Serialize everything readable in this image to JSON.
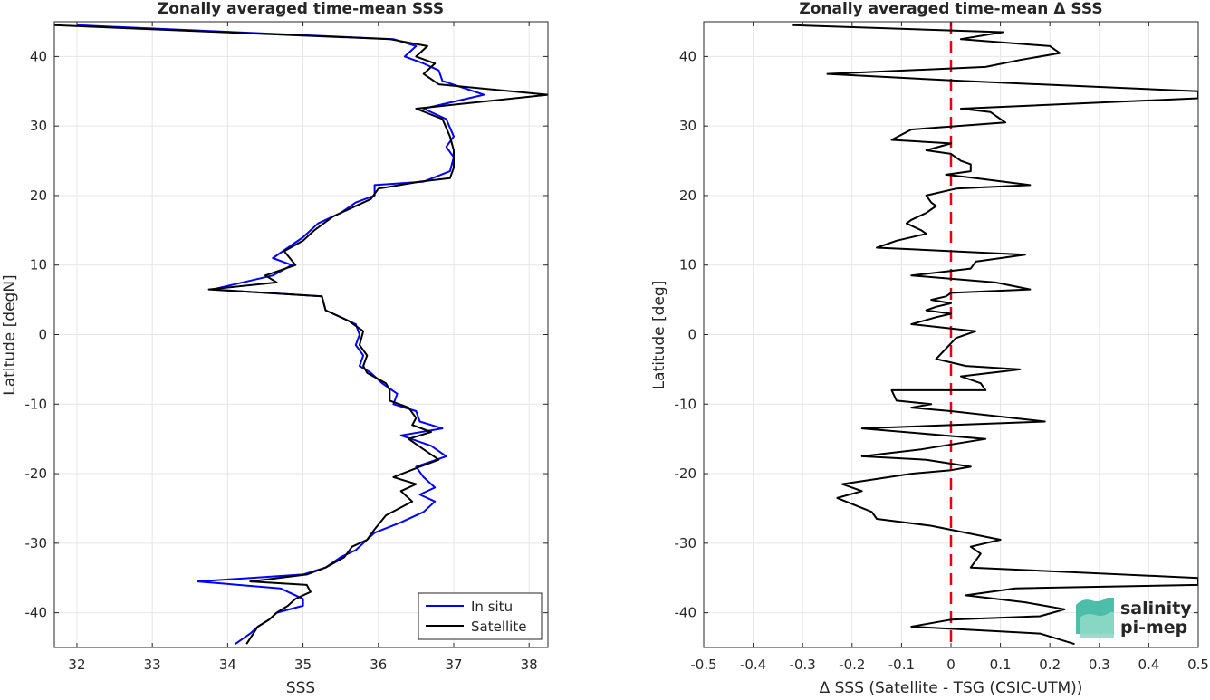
{
  "chart_data": [
    {
      "type": "line",
      "title": "Zonally averaged time-mean SSS",
      "xlabel": "SSS",
      "ylabel": "Latitude [degN]",
      "xlim": [
        31.7,
        38.25
      ],
      "ylim": [
        -45,
        45
      ],
      "xticks": [
        32,
        33,
        34,
        35,
        36,
        37,
        38
      ],
      "yticks": [
        -40,
        -30,
        -20,
        -10,
        0,
        10,
        20,
        30,
        40
      ],
      "grid": true,
      "legend": "bottom-right",
      "series": [
        {
          "name": "In situ",
          "color": "#0000ff",
          "points": [
            [
              32.0,
              44.5
            ],
            [
              36.2,
              42.5
            ],
            [
              36.5,
              41.5
            ],
            [
              36.35,
              40
            ],
            [
              36.6,
              39
            ],
            [
              36.8,
              38
            ],
            [
              36.85,
              36.5
            ],
            [
              37.4,
              34.5
            ],
            [
              36.6,
              32.5
            ],
            [
              36.9,
              31
            ],
            [
              37.0,
              28.5
            ],
            [
              36.9,
              27
            ],
            [
              37.0,
              25.5
            ],
            [
              36.95,
              23.5
            ],
            [
              36.6,
              22
            ],
            [
              35.95,
              21.5
            ],
            [
              35.95,
              20
            ],
            [
              35.7,
              19
            ],
            [
              35.5,
              17.5
            ],
            [
              35.2,
              16
            ],
            [
              35.0,
              14
            ],
            [
              34.8,
              12.5
            ],
            [
              34.6,
              11
            ],
            [
              34.85,
              10
            ],
            [
              34.6,
              8.5
            ],
            [
              33.8,
              6.5
            ],
            [
              35.25,
              5.5
            ],
            [
              35.3,
              3.5
            ],
            [
              35.7,
              1.5
            ],
            [
              35.75,
              0
            ],
            [
              35.7,
              -1.5
            ],
            [
              35.8,
              -3
            ],
            [
              35.75,
              -4.5
            ],
            [
              35.9,
              -5.5
            ],
            [
              36.05,
              -7
            ],
            [
              36.25,
              -8.5
            ],
            [
              36.2,
              -10
            ],
            [
              36.5,
              -11
            ],
            [
              36.55,
              -12.5
            ],
            [
              36.85,
              -13.5
            ],
            [
              36.3,
              -14.5
            ],
            [
              36.7,
              -16
            ],
            [
              36.9,
              -17.5
            ],
            [
              36.5,
              -19
            ],
            [
              36.6,
              -20.5
            ],
            [
              36.75,
              -22
            ],
            [
              36.55,
              -23
            ],
            [
              36.75,
              -24
            ],
            [
              36.6,
              -25.5
            ],
            [
              36.3,
              -27
            ],
            [
              35.95,
              -28.5
            ],
            [
              35.8,
              -30
            ],
            [
              35.7,
              -31
            ],
            [
              35.5,
              -32
            ],
            [
              35.3,
              -33.5
            ],
            [
              35.0,
              -34.5
            ],
            [
              33.6,
              -35.5
            ],
            [
              34.7,
              -36.5
            ],
            [
              35.0,
              -38
            ],
            [
              35.0,
              -39
            ],
            [
              34.65,
              -40
            ],
            [
              34.55,
              -41
            ],
            [
              34.4,
              -42
            ],
            [
              34.3,
              -43
            ],
            [
              34.1,
              -44.5
            ]
          ]
        },
        {
          "name": "Satellite",
          "color": "#000000",
          "points": [
            [
              31.7,
              44.5
            ],
            [
              36.15,
              42.5
            ],
            [
              36.65,
              41.5
            ],
            [
              36.5,
              40
            ],
            [
              36.75,
              39
            ],
            [
              36.6,
              37.5
            ],
            [
              36.8,
              36
            ],
            [
              38.25,
              34.5
            ],
            [
              36.5,
              32.5
            ],
            [
              36.85,
              31
            ],
            [
              36.95,
              28.5
            ],
            [
              37.0,
              26.5
            ],
            [
              37.0,
              24
            ],
            [
              36.95,
              22.5
            ],
            [
              36.55,
              22
            ],
            [
              36.0,
              21
            ],
            [
              35.9,
              19.5
            ],
            [
              35.6,
              18
            ],
            [
              35.4,
              17
            ],
            [
              35.15,
              15
            ],
            [
              35.0,
              13.5
            ],
            [
              34.75,
              12
            ],
            [
              34.9,
              10
            ],
            [
              34.5,
              8.5
            ],
            [
              34.65,
              7.5
            ],
            [
              33.75,
              6.5
            ],
            [
              35.25,
              5.5
            ],
            [
              35.3,
              3.5
            ],
            [
              35.6,
              2
            ],
            [
              35.8,
              0.5
            ],
            [
              35.75,
              -1.5
            ],
            [
              35.85,
              -3
            ],
            [
              35.8,
              -4.5
            ],
            [
              35.85,
              -5.5
            ],
            [
              36.1,
              -7
            ],
            [
              36.15,
              -8
            ],
            [
              36.15,
              -9.5
            ],
            [
              36.4,
              -10.5
            ],
            [
              36.5,
              -12
            ],
            [
              36.45,
              -13
            ],
            [
              36.7,
              -14
            ],
            [
              36.4,
              -15
            ],
            [
              36.6,
              -16.5
            ],
            [
              36.8,
              -18
            ],
            [
              36.55,
              -19
            ],
            [
              36.2,
              -20.5
            ],
            [
              36.5,
              -21.5
            ],
            [
              36.3,
              -22.5
            ],
            [
              36.45,
              -24
            ],
            [
              36.1,
              -26
            ],
            [
              35.95,
              -28
            ],
            [
              35.85,
              -29.5
            ],
            [
              35.65,
              -30.5
            ],
            [
              35.55,
              -32
            ],
            [
              35.3,
              -33.5
            ],
            [
              35.05,
              -34.5
            ],
            [
              34.3,
              -35.5
            ],
            [
              35.05,
              -36
            ],
            [
              35.1,
              -37
            ],
            [
              34.9,
              -38
            ],
            [
              34.8,
              -39
            ],
            [
              34.65,
              -40
            ],
            [
              34.55,
              -41
            ],
            [
              34.4,
              -42
            ],
            [
              34.25,
              -44.5
            ]
          ]
        }
      ]
    },
    {
      "type": "line",
      "title": "Zonally averaged time-mean Δ SSS",
      "xlabel": "Δ SSS (Satellite - TSG (CSIC-UTM))",
      "ylabel": "Latitude [deg]",
      "xlim": [
        -0.5,
        0.5
      ],
      "ylim": [
        -45,
        45
      ],
      "xticks": [
        -0.5,
        -0.4,
        -0.3,
        -0.2,
        -0.1,
        0,
        0.1,
        0.2,
        0.3,
        0.4,
        0.5
      ],
      "yticks": [
        -40,
        -30,
        -20,
        -10,
        0,
        10,
        20,
        30,
        40
      ],
      "grid": true,
      "reference_line": {
        "x": 0,
        "color": "#e8000b",
        "style": "dashed"
      },
      "series": [
        {
          "color": "#000000",
          "points": [
            [
              -0.32,
              44.5
            ],
            [
              0.105,
              43.5
            ],
            [
              0.02,
              42.5
            ],
            [
              0.2,
              41.5
            ],
            [
              0.22,
              40.5
            ],
            [
              0.14,
              39.5
            ],
            [
              0.07,
              38.5
            ],
            [
              -0.25,
              37.5
            ],
            [
              0.02,
              36.5
            ],
            [
              0.5,
              35
            ],
            [
              0.5,
              34
            ],
            [
              0.02,
              32.5
            ],
            [
              0.08,
              32
            ],
            [
              0.11,
              30.5
            ],
            [
              -0.08,
              29.5
            ],
            [
              -0.12,
              28
            ],
            [
              0.0,
              27.5
            ],
            [
              -0.05,
              26.5
            ],
            [
              0.0,
              26
            ],
            [
              0.02,
              25
            ],
            [
              0.04,
              24.5
            ],
            [
              0.04,
              23.5
            ],
            [
              -0.01,
              23
            ],
            [
              0.05,
              22.5
            ],
            [
              0.16,
              21.5
            ],
            [
              0.01,
              21
            ],
            [
              -0.05,
              20
            ],
            [
              -0.04,
              19
            ],
            [
              -0.03,
              18.5
            ],
            [
              -0.05,
              17.5
            ],
            [
              -0.08,
              16.5
            ],
            [
              -0.09,
              16
            ],
            [
              -0.06,
              15
            ],
            [
              -0.05,
              14.5
            ],
            [
              -0.11,
              13.5
            ],
            [
              -0.15,
              12.5
            ],
            [
              0.15,
              11.5
            ],
            [
              0.05,
              10.5
            ],
            [
              0.04,
              9.5
            ],
            [
              -0.08,
              8.5
            ],
            [
              0.09,
              7.5
            ],
            [
              0.16,
              6.5
            ],
            [
              0.0,
              6
            ],
            [
              -0.01,
              5.5
            ],
            [
              -0.04,
              5
            ],
            [
              0.0,
              4.5
            ],
            [
              -0.03,
              4
            ],
            [
              -0.05,
              3.5
            ],
            [
              0.0,
              3
            ],
            [
              -0.03,
              2.5
            ],
            [
              -0.08,
              1.5
            ],
            [
              0.05,
              0.5
            ],
            [
              0.01,
              -0.5
            ],
            [
              -0.01,
              -2
            ],
            [
              -0.03,
              -3.5
            ],
            [
              0.03,
              -4.5
            ],
            [
              0.14,
              -5
            ],
            [
              0.02,
              -6
            ],
            [
              0.06,
              -7
            ],
            [
              0.07,
              -8
            ],
            [
              -0.12,
              -8
            ],
            [
              -0.11,
              -9.5
            ],
            [
              -0.04,
              -10
            ],
            [
              -0.08,
              -10.5
            ],
            [
              0.0,
              -11
            ],
            [
              0.19,
              -12.5
            ],
            [
              -0.18,
              -13.5
            ],
            [
              0.07,
              -15
            ],
            [
              -0.06,
              -16.5
            ],
            [
              -0.18,
              -17.5
            ],
            [
              -0.05,
              -18
            ],
            [
              0.04,
              -19
            ],
            [
              0.0,
              -19.5
            ],
            [
              -0.08,
              -20
            ],
            [
              -0.22,
              -21.5
            ],
            [
              -0.18,
              -22.5
            ],
            [
              -0.23,
              -23.5
            ],
            [
              -0.16,
              -25.5
            ],
            [
              -0.15,
              -26.5
            ],
            [
              -0.04,
              -27.5
            ],
            [
              0.1,
              -29.5
            ],
            [
              0.04,
              -30.5
            ],
            [
              0.06,
              -31.5
            ],
            [
              0.04,
              -33.5
            ],
            [
              0.5,
              -35
            ],
            [
              0.5,
              -36
            ],
            [
              0.13,
              -36.5
            ],
            [
              0.03,
              -37.5
            ],
            [
              0.15,
              -38.5
            ],
            [
              0.23,
              -39.5
            ],
            [
              0.18,
              -40.5
            ],
            [
              0.0,
              -41
            ],
            [
              -0.08,
              -42
            ],
            [
              0.18,
              -43
            ],
            [
              0.25,
              -44.5
            ]
          ]
        }
      ]
    }
  ],
  "legend": {
    "items": [
      {
        "label": "In situ",
        "color": "#0000ff"
      },
      {
        "label": "Satellite",
        "color": "#000000"
      }
    ]
  },
  "logo": {
    "line1": "salinity",
    "line2": "pi-mep",
    "color1": "#1aa08c",
    "color2": "#0b7f7a"
  }
}
